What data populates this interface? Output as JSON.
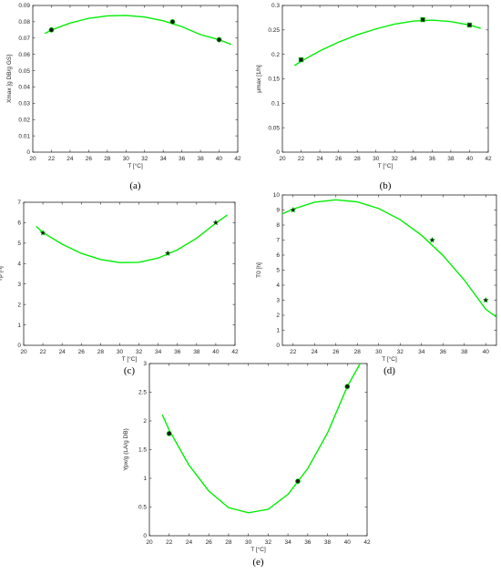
{
  "colors": {
    "curve": "#00ee00",
    "marker": "#1a1a1a",
    "axis": "#262626"
  },
  "chart_data": [
    {
      "id": "a",
      "type": "scatter",
      "panel_label": "(a)",
      "xlabel": "T [°C]",
      "ylabel": "Xmax [g DB/g GS]",
      "xlim": [
        20,
        42
      ],
      "ylim": [
        0,
        0.09
      ],
      "xticks": [
        20,
        22,
        24,
        26,
        28,
        30,
        32,
        34,
        36,
        38,
        40,
        42
      ],
      "yticks": [
        0,
        0.01,
        0.02,
        0.03,
        0.04,
        0.05,
        0.06,
        0.07,
        0.08,
        0.09
      ],
      "ytick_labels": [
        "0",
        "0.01",
        "0.02",
        "0.03",
        "0.04",
        "0.05",
        "0.06",
        "0.07",
        "0.08",
        "0.09"
      ],
      "marker": "circle",
      "points": {
        "x": [
          22,
          35,
          40
        ],
        "y": [
          0.075,
          0.08,
          0.069
        ]
      },
      "fit": {
        "x": [
          21.3,
          22,
          24,
          26,
          28,
          30,
          32,
          34,
          36,
          38,
          40,
          41.3
        ],
        "y": [
          0.0728,
          0.075,
          0.0792,
          0.0821,
          0.0836,
          0.0839,
          0.0829,
          0.0806,
          0.077,
          0.0721,
          0.069,
          0.0661
        ]
      },
      "grid": false
    },
    {
      "id": "b",
      "type": "scatter",
      "panel_label": "(b)",
      "xlabel": "T [°C]",
      "ylabel": "μmax [1/h]",
      "xlim": [
        20,
        42
      ],
      "ylim": [
        0,
        0.3
      ],
      "xticks": [
        20,
        22,
        24,
        26,
        28,
        30,
        32,
        34,
        36,
        38,
        40,
        42
      ],
      "yticks": [
        0,
        0.05,
        0.1,
        0.15,
        0.2,
        0.25,
        0.3
      ],
      "ytick_labels": [
        "0",
        "0.05",
        "0.1",
        "0.15",
        "0.2",
        "0.25",
        "0.3"
      ],
      "marker": "square",
      "points": {
        "x": [
          22,
          35,
          40
        ],
        "y": [
          0.189,
          0.271,
          0.26
        ]
      },
      "fit": {
        "x": [
          21.3,
          22,
          24,
          26,
          28,
          30,
          32,
          34,
          36,
          38,
          40,
          41.2
        ],
        "y": [
          0.177,
          0.186,
          0.207,
          0.225,
          0.24,
          0.252,
          0.262,
          0.268,
          0.27,
          0.267,
          0.26,
          0.253
        ]
      },
      "grid": false
    },
    {
      "id": "c",
      "type": "scatter",
      "panel_label": "(c)",
      "xlabel": "T [°C]",
      "ylabel": "Tp [h]",
      "xlim": [
        20,
        42
      ],
      "ylim": [
        0,
        7
      ],
      "xticks": [
        20,
        22,
        24,
        26,
        28,
        30,
        32,
        34,
        36,
        38,
        40,
        42
      ],
      "yticks": [
        0,
        1,
        2,
        3,
        4,
        5,
        6,
        7
      ],
      "ytick_labels": [
        "0",
        "1",
        "2",
        "3",
        "4",
        "5",
        "6",
        "7"
      ],
      "marker": "star",
      "points": {
        "x": [
          22,
          35,
          40
        ],
        "y": [
          5.5,
          4.5,
          6.0
        ]
      },
      "fit": {
        "x": [
          21.3,
          22,
          24,
          26,
          28,
          30,
          32,
          34,
          36,
          38,
          40,
          41.2
        ],
        "y": [
          5.82,
          5.52,
          4.95,
          4.5,
          4.2,
          4.05,
          4.06,
          4.27,
          4.67,
          5.24,
          5.98,
          6.38
        ]
      },
      "grid": false
    },
    {
      "id": "d",
      "type": "scatter",
      "panel_label": "(d)",
      "xlabel": "T [°C]",
      "ylabel": "T0 [h]",
      "xlim": [
        21,
        41
      ],
      "ylim": [
        0,
        10
      ],
      "xticks": [
        22,
        24,
        26,
        28,
        30,
        32,
        34,
        36,
        38,
        40
      ],
      "yticks": [
        0,
        1,
        2,
        3,
        4,
        5,
        6,
        7,
        8,
        9,
        10
      ],
      "ytick_labels": [
        "0",
        "1",
        "2",
        "3",
        "4",
        "5",
        "6",
        "7",
        "8",
        "9",
        "10"
      ],
      "marker": "star",
      "points": {
        "x": [
          22,
          35,
          40
        ],
        "y": [
          9.0,
          7.0,
          3.0
        ]
      },
      "fit": {
        "x": [
          21,
          22,
          24,
          26,
          28,
          30,
          32,
          34,
          36,
          38,
          40,
          41
        ],
        "y": [
          8.75,
          9.06,
          9.52,
          9.68,
          9.54,
          9.1,
          8.36,
          7.32,
          5.98,
          4.34,
          2.4,
          1.88
        ]
      },
      "grid": false
    },
    {
      "id": "e",
      "type": "scatter",
      "panel_label": "(e)",
      "xlabel": "T [°C]",
      "ylabel": "Ypx/g (LA/g DB)",
      "xlim": [
        20,
        42
      ],
      "ylim": [
        0,
        3
      ],
      "xticks": [
        20,
        22,
        24,
        26,
        28,
        30,
        32,
        34,
        36,
        38,
        40,
        42
      ],
      "yticks": [
        0,
        0.5,
        1,
        1.5,
        2,
        2.5,
        3
      ],
      "ytick_labels": [
        "0",
        "0.5",
        "1",
        "1.5",
        "2",
        "2.5",
        "3"
      ],
      "marker": "circle",
      "points": {
        "x": [
          22,
          35,
          40
        ],
        "y": [
          1.78,
          0.95,
          2.6
        ]
      },
      "fit": {
        "x": [
          21.3,
          22,
          24,
          26,
          28,
          30,
          32,
          34,
          36,
          38,
          40,
          41.3
        ],
        "y": [
          2.11,
          1.84,
          1.23,
          0.78,
          0.49,
          0.4,
          0.46,
          0.72,
          1.17,
          1.79,
          2.6,
          3.0
        ]
      },
      "grid": false
    }
  ]
}
